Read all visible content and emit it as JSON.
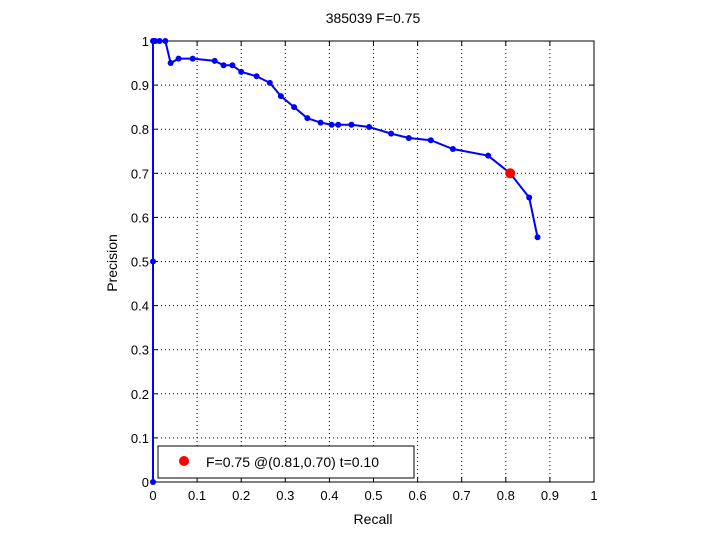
{
  "chart_data": {
    "type": "line",
    "title": "385039 F=0.75",
    "xlabel": "Recall",
    "ylabel": "Precision",
    "xlim": [
      0,
      1
    ],
    "ylim": [
      0,
      1
    ],
    "x_ticks": [
      "0",
      "0.1",
      "0.2",
      "0.3",
      "0.4",
      "0.5",
      "0.6",
      "0.7",
      "0.8",
      "0.9",
      "1"
    ],
    "y_ticks": [
      "0",
      "0.1",
      "0.2",
      "0.3",
      "0.4",
      "0.5",
      "0.6",
      "0.7",
      "0.8",
      "0.9",
      "1"
    ],
    "grid": true,
    "grid_style": "dotted",
    "legend_position": "bottom-left",
    "colors": {
      "series": "#0000ff",
      "marker": "#ff0000",
      "axes": "#000000",
      "grid": "#000000"
    },
    "series": [
      {
        "x": [
          0.0,
          0.0,
          0.0,
          0.002,
          0.005,
          0.015,
          0.028,
          0.04,
          0.058,
          0.09,
          0.14,
          0.16,
          0.18,
          0.2,
          0.235,
          0.265,
          0.29,
          0.32,
          0.35,
          0.38,
          0.405,
          0.42,
          0.45,
          0.49,
          0.54,
          0.58,
          0.63,
          0.68,
          0.76,
          0.81,
          0.853,
          0.872
        ],
        "y": [
          0.0,
          0.5,
          1.0,
          1.0,
          1.0,
          1.0,
          1.0,
          0.95,
          0.96,
          0.96,
          0.955,
          0.945,
          0.945,
          0.93,
          0.92,
          0.905,
          0.875,
          0.85,
          0.825,
          0.815,
          0.81,
          0.81,
          0.81,
          0.805,
          0.79,
          0.78,
          0.775,
          0.755,
          0.74,
          0.7,
          0.645,
          0.555
        ]
      },
      {
        "x": [
          0.81
        ],
        "y": [
          0.7
        ]
      }
    ],
    "legend": [
      "F=0.75 @(0.81,0.70) t=0.10"
    ]
  }
}
